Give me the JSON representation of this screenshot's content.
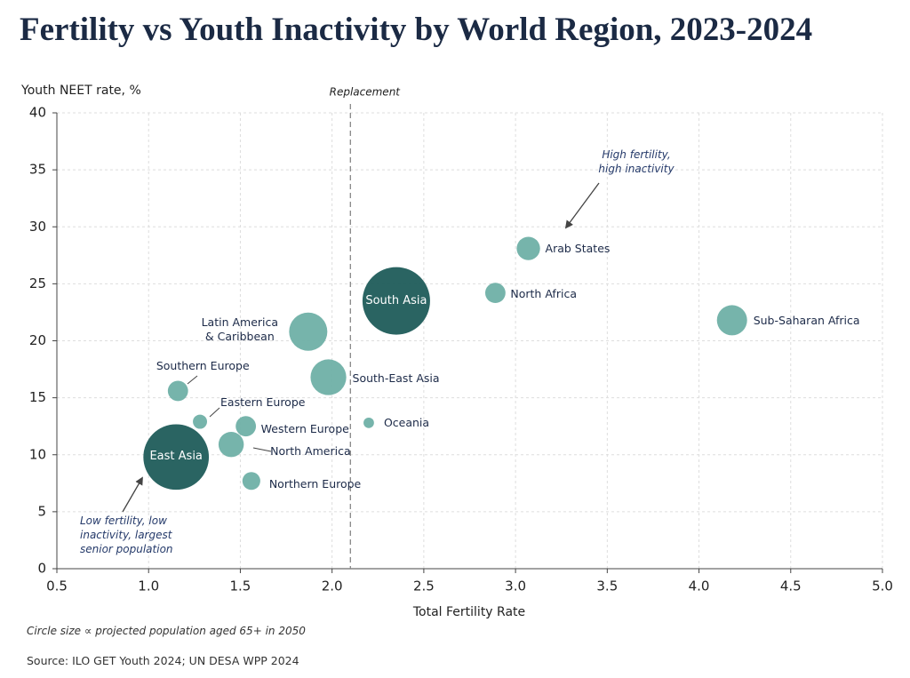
{
  "chart_data": {
    "type": "bubble",
    "title": "Fertility vs Youth Inactivity by World Region, 2023-2024",
    "y_label": "Youth NEET rate, %",
    "x_label": "Total Fertility Rate",
    "labels": [
      "East Asia",
      "South Asia",
      "Sub-Saharan Africa",
      "Arab States",
      "North Africa",
      "Latin America & Caribbean",
      "South-East Asia",
      "Oceania",
      "Southern Europe",
      "Eastern Europe",
      "Western Europe",
      "North America",
      "Northern Europe"
    ],
    "x": [
      1.15,
      2.35,
      4.18,
      3.07,
      2.89,
      1.87,
      1.98,
      2.2,
      1.16,
      1.28,
      1.53,
      1.45,
      1.56
    ],
    "values": [
      9.8,
      23.5,
      21.8,
      28.1,
      24.2,
      20.8,
      16.8,
      12.8,
      15.6,
      12.9,
      12.5,
      10.9,
      7.7
    ],
    "sizes": [
      470,
      500,
      100,
      60,
      45,
      160,
      140,
      12,
      45,
      22,
      45,
      70,
      35
    ],
    "colors": [
      "#1f5c5a",
      "#1f5c5a",
      "#6fb0a7",
      "#6fb0a7",
      "#6fb0a7",
      "#6fb0a7",
      "#6fb0a7",
      "#6fb0a7",
      "#6fb0a7",
      "#6fb0a7",
      "#6fb0a7",
      "#6fb0a7",
      "#6fb0a7"
    ],
    "xlim": [
      0.5,
      5.0
    ],
    "ylim": [
      0,
      40
    ],
    "xticks": [
      0.5,
      {
        "value": 1,
        "label": "1.0"
      },
      1.5,
      {
        "value": 2,
        "label": "2.0"
      },
      2.5,
      {
        "value": 3,
        "label": "3.0"
      },
      3.5,
      {
        "value": 4,
        "label": "4.0"
      },
      4.5,
      {
        "value": 5,
        "label": "5.0"
      }
    ],
    "yticks": [
      0,
      5,
      10,
      15,
      20,
      25,
      30,
      35,
      40
    ],
    "grid": true,
    "reference_line": {
      "x": 2.1,
      "label": "Replacement"
    },
    "annotations": [
      "High fertility, high inactivity",
      "Low fertility, low inactivity, largest senior population"
    ],
    "size_note": "Circle size ∝ projected population aged 65+ in 2050",
    "source": "Source: ILO GET Youth 2024; UN DESA WPP 2024"
  }
}
